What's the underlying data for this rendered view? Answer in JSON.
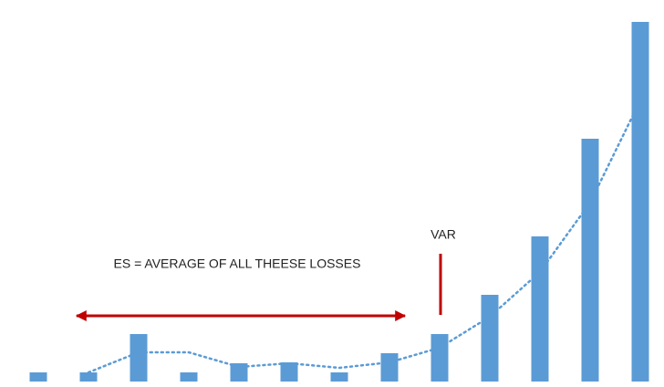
{
  "chart_data": {
    "type": "bar",
    "categories": [
      null,
      null,
      null,
      null,
      null,
      null,
      null,
      null,
      null,
      null,
      null,
      null,
      null
    ],
    "series": [
      {
        "type": "bar",
        "color": "#5b9bd5",
        "values": [
          10,
          10,
          52,
          10,
          20,
          21,
          10,
          31,
          52,
          95,
          159,
          266,
          394
        ]
      },
      {
        "type": "line",
        "color": "#5b9bd5",
        "values": [
          null,
          10,
          32,
          32,
          16,
          20,
          15,
          21,
          37,
          71,
          120,
          196,
          308
        ]
      }
    ],
    "ylim": [
      0,
      394
    ],
    "annotations": {
      "var": "VAR",
      "es": "ES = AVERAGE OF ALL THEESE LOSSES"
    },
    "annotation_color": "#c00000"
  }
}
